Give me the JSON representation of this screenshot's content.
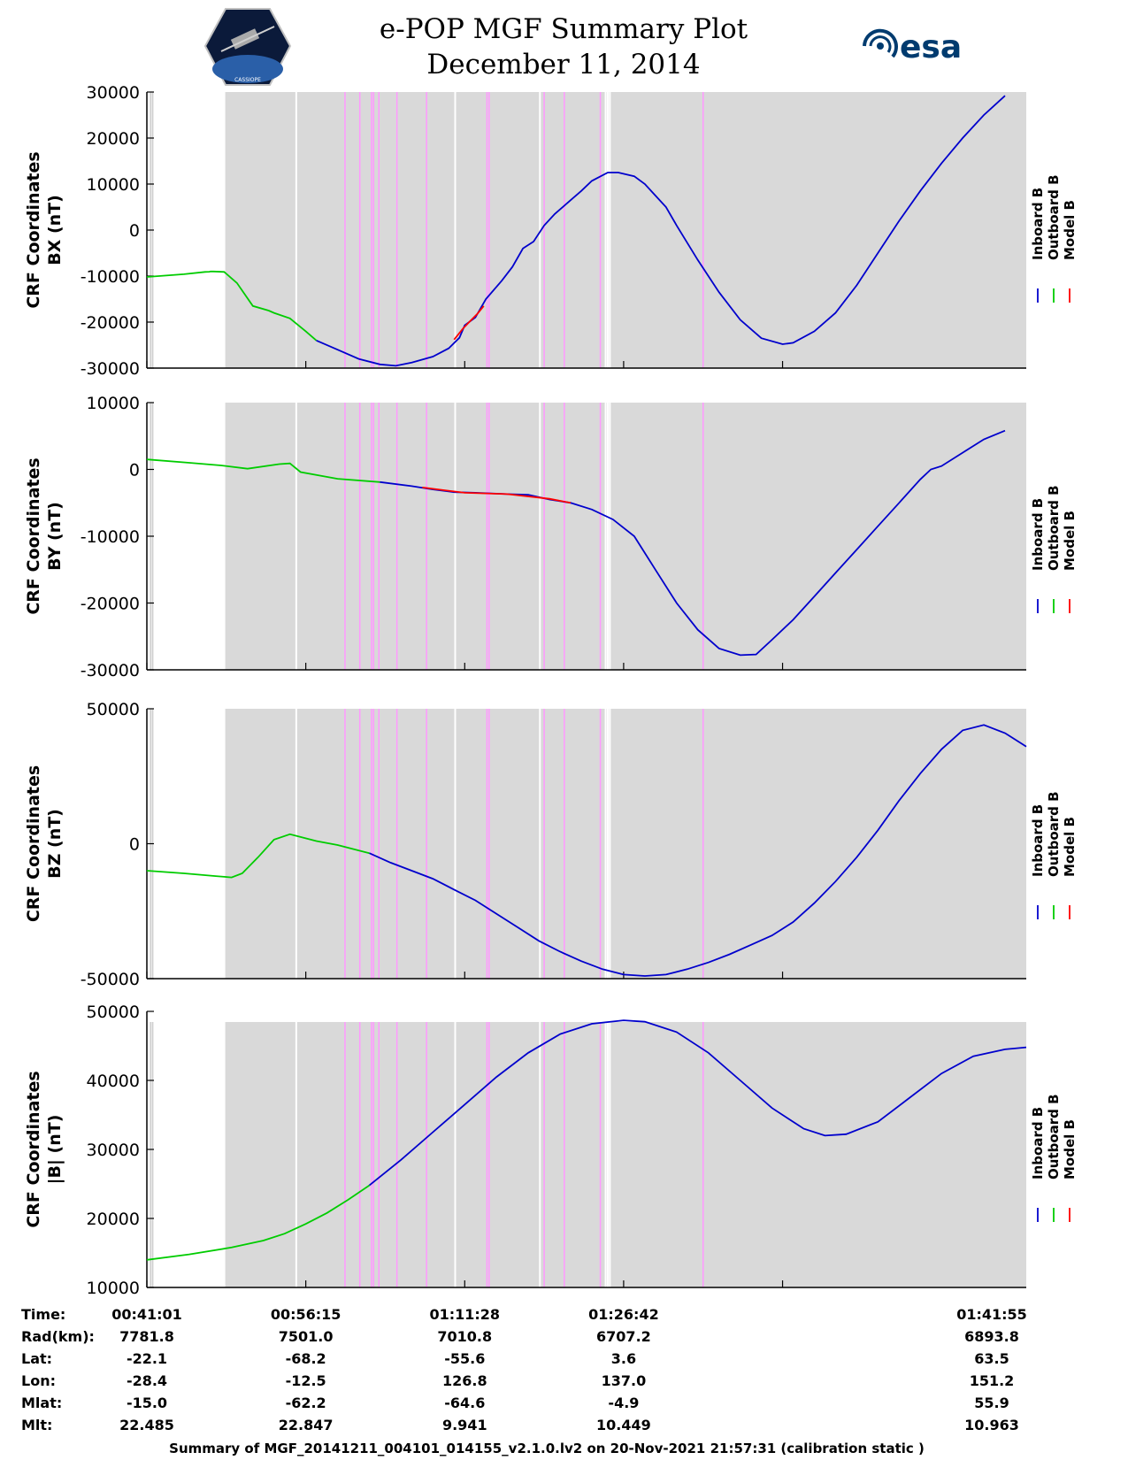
{
  "header": {
    "title": "e-POP MGF Summary Plot",
    "date": "December 11, 2014",
    "logo_left": "CASSIOPE",
    "logo_right": "esa"
  },
  "colors": {
    "inboard": "#0000cc",
    "outboard": "#00cc00",
    "model": "#ff0000",
    "background_shade": "#d9d9d9",
    "gap_line": "#ffffff",
    "marker_line": "#ff99ff"
  },
  "legend": {
    "inboard": "Inboard B",
    "outboard": "Outboard B",
    "model": "Model B"
  },
  "chart_data": [
    {
      "type": "line",
      "id": "bx",
      "ylabel_line1": "CRF Coordinates",
      "ylabel_line2": "BX (nT)",
      "ylim": [
        -30000,
        30000
      ],
      "yticks": [
        -30000,
        -20000,
        -10000,
        0,
        10000,
        20000,
        30000
      ],
      "series": [
        {
          "name": "Outboard B",
          "color_key": "outboard",
          "points": [
            [
              0,
              -10200
            ],
            [
              3.5,
              -9600
            ],
            [
              5.5,
              -9100
            ],
            [
              5.9,
              -9050
            ],
            [
              6.0,
              -9000
            ],
            [
              6.3,
              -9000
            ],
            [
              7.3,
              -9100
            ],
            [
              8.5,
              -11500
            ],
            [
              10,
              -16500
            ],
            [
              11.5,
              -17500
            ],
            [
              12,
              -18000
            ],
            [
              13.5,
              -19200
            ],
            [
              15,
              -22000
            ],
            [
              16,
              -24000
            ]
          ]
        },
        {
          "name": "Inboard B",
          "color_key": "inboard",
          "points": [
            [
              16,
              -24000
            ],
            [
              18,
              -26000
            ],
            [
              20,
              -28000
            ],
            [
              22,
              -29200
            ],
            [
              23.5,
              -29500
            ],
            [
              25,
              -28800
            ],
            [
              27,
              -27500
            ],
            [
              28.5,
              -25700
            ],
            [
              29.5,
              -23400
            ],
            [
              30,
              -20700
            ],
            [
              31,
              -19000
            ],
            [
              32,
              -15000
            ],
            [
              33.5,
              -11000
            ],
            [
              34.5,
              -8000
            ],
            [
              35.5,
              -4000
            ],
            [
              36.5,
              -2500
            ],
            [
              37.5,
              1000
            ],
            [
              38.5,
              3500
            ],
            [
              39,
              4500
            ],
            [
              40,
              6500
            ],
            [
              41,
              8500
            ],
            [
              42,
              10700
            ],
            [
              43.5,
              12500
            ],
            [
              44.5,
              12500
            ],
            [
              46,
              11700
            ],
            [
              47,
              10000
            ],
            [
              48,
              7500
            ],
            [
              49,
              5000
            ],
            [
              50,
              1000
            ],
            [
              52,
              -6500
            ],
            [
              54,
              -13500
            ],
            [
              56,
              -19500
            ],
            [
              58,
              -23500
            ],
            [
              60,
              -24800
            ],
            [
              61,
              -24500
            ],
            [
              63,
              -22000
            ],
            [
              65,
              -18000
            ],
            [
              67,
              -12000
            ],
            [
              69,
              -5000
            ],
            [
              71,
              2000
            ],
            [
              73,
              8500
            ],
            [
              75,
              14500
            ],
            [
              77,
              20000
            ],
            [
              79,
              25000
            ],
            [
              81,
              29200
            ]
          ]
        },
        {
          "name": "Model B",
          "color_key": "model",
          "points": [
            [
              29,
              -23800
            ],
            [
              29.8,
              -21500
            ],
            [
              30.5,
              -19800
            ],
            [
              31.2,
              -18200
            ],
            [
              31.8,
              -16500
            ]
          ]
        }
      ]
    },
    {
      "type": "line",
      "id": "by",
      "ylabel_line1": "CRF Coordinates",
      "ylabel_line2": "BY (nT)",
      "ylim": [
        -30000,
        10000
      ],
      "yticks": [
        -30000,
        -20000,
        -10000,
        0,
        10000
      ],
      "series": [
        {
          "name": "Outboard B",
          "color_key": "outboard",
          "points": [
            [
              0,
              1500
            ],
            [
              4,
              1000
            ],
            [
              7,
              600
            ],
            [
              9.5,
              100
            ],
            [
              12.5,
              800
            ],
            [
              13.5,
              900
            ],
            [
              14.5,
              -400
            ],
            [
              18,
              -1400
            ],
            [
              22,
              -1900
            ]
          ]
        },
        {
          "name": "Inboard B",
          "color_key": "inboard",
          "points": [
            [
              22,
              -1900
            ],
            [
              25,
              -2500
            ],
            [
              27,
              -3000
            ],
            [
              29,
              -3400
            ],
            [
              31,
              -3500
            ],
            [
              34,
              -3700
            ],
            [
              36,
              -3800
            ],
            [
              38,
              -4500
            ],
            [
              40,
              -5000
            ],
            [
              42,
              -6000
            ],
            [
              44,
              -7500
            ],
            [
              46,
              -10000
            ],
            [
              48,
              -15000
            ],
            [
              50,
              -20000
            ],
            [
              52,
              -24000
            ],
            [
              54,
              -26800
            ],
            [
              56,
              -27800
            ],
            [
              57.5,
              -27700
            ],
            [
              59,
              -25500
            ],
            [
              61,
              -22500
            ],
            [
              63,
              -19000
            ],
            [
              65,
              -15500
            ],
            [
              67,
              -12000
            ],
            [
              69,
              -8500
            ],
            [
              71,
              -5000
            ],
            [
              73,
              -1500
            ],
            [
              74,
              0
            ],
            [
              75,
              500
            ],
            [
              77,
              2500
            ],
            [
              79,
              4500
            ],
            [
              81,
              5800
            ]
          ]
        },
        {
          "name": "Model B",
          "color_key": "model",
          "points": [
            [
              26,
              -2700
            ],
            [
              30,
              -3500
            ],
            [
              34,
              -3700
            ],
            [
              38,
              -4400
            ],
            [
              40,
              -5000
            ]
          ]
        }
      ]
    },
    {
      "type": "line",
      "id": "bz",
      "ylabel_line1": "CRF Coordinates",
      "ylabel_line2": "BZ (nT)",
      "ylim": [
        -50000,
        50000
      ],
      "yticks": [
        -50000,
        0,
        50000
      ],
      "series": [
        {
          "name": "Outboard B",
          "color_key": "outboard",
          "points": [
            [
              0,
              -10000
            ],
            [
              3.5,
              -11000
            ],
            [
              6.5,
              -12000
            ],
            [
              8,
              -12500
            ],
            [
              9,
              -11000
            ],
            [
              10.5,
              -5000
            ],
            [
              12,
              1500
            ],
            [
              13.5,
              3500
            ],
            [
              14.5,
              2500
            ],
            [
              16,
              1000
            ],
            [
              18,
              -500
            ],
            [
              21,
              -3500
            ]
          ]
        },
        {
          "name": "Inboard B",
          "color_key": "inboard",
          "points": [
            [
              21,
              -3500
            ],
            [
              23,
              -7000
            ],
            [
              25,
              -10000
            ],
            [
              27,
              -13000
            ],
            [
              29,
              -17000
            ],
            [
              31,
              -21000
            ],
            [
              33,
              -26000
            ],
            [
              35,
              -31000
            ],
            [
              37,
              -36000
            ],
            [
              39,
              -40000
            ],
            [
              41,
              -43500
            ],
            [
              43,
              -46500
            ],
            [
              45,
              -48500
            ],
            [
              47,
              -49000
            ],
            [
              49,
              -48500
            ],
            [
              51,
              -46500
            ],
            [
              53,
              -44000
            ],
            [
              55,
              -41000
            ],
            [
              57,
              -37500
            ],
            [
              59,
              -34000
            ],
            [
              61,
              -29000
            ],
            [
              63,
              -22000
            ],
            [
              65,
              -14000
            ],
            [
              67,
              -5000
            ],
            [
              69,
              5000
            ],
            [
              71,
              16000
            ],
            [
              73,
              26000
            ],
            [
              75,
              35000
            ],
            [
              77,
              42000
            ],
            [
              79,
              44000
            ],
            [
              81,
              41000
            ],
            [
              83,
              36000
            ]
          ]
        }
      ]
    },
    {
      "type": "line",
      "id": "bmag",
      "ylabel_line1": "CRF Coordinates",
      "ylabel_line2": "|B| (nT)",
      "ylim": [
        10000,
        50000
      ],
      "yticks": [
        10000,
        20000,
        30000,
        40000,
        50000
      ],
      "series": [
        {
          "name": "Outboard B",
          "color_key": "outboard",
          "points": [
            [
              0,
              14000
            ],
            [
              4,
              14800
            ],
            [
              8,
              15800
            ],
            [
              11,
              16800
            ],
            [
              13,
              17800
            ],
            [
              15,
              19200
            ],
            [
              17,
              20800
            ],
            [
              19,
              22700
            ],
            [
              21,
              24800
            ]
          ]
        },
        {
          "name": "Inboard B",
          "color_key": "inboard",
          "points": [
            [
              21,
              24800
            ],
            [
              24,
              28500
            ],
            [
              27,
              32500
            ],
            [
              30,
              36500
            ],
            [
              33,
              40500
            ],
            [
              36,
              44000
            ],
            [
              39,
              46700
            ],
            [
              42,
              48200
            ],
            [
              45,
              48700
            ],
            [
              47,
              48500
            ],
            [
              50,
              47000
            ],
            [
              53,
              44000
            ],
            [
              56,
              40000
            ],
            [
              59,
              36000
            ],
            [
              62,
              33000
            ],
            [
              64,
              32000
            ],
            [
              66,
              32200
            ],
            [
              69,
              34000
            ],
            [
              72,
              37500
            ],
            [
              75,
              41000
            ],
            [
              78,
              43500
            ],
            [
              81,
              44500
            ],
            [
              83,
              44800
            ]
          ]
        }
      ]
    }
  ],
  "x_axis": {
    "xlim": [
      0,
      83
    ],
    "tick_positions_min": [
      0,
      15,
      30,
      45,
      60
    ],
    "labels": {
      "time": {
        "label": "Time:",
        "values": [
          "00:41:01",
          "00:56:15",
          "01:11:28",
          "01:26:42",
          "01:41:55"
        ]
      },
      "rad": {
        "label": "Rad(km):",
        "values": [
          "7781.8",
          "7501.0",
          "7010.8",
          "6707.2",
          "6893.8"
        ]
      },
      "lat": {
        "label": "Lat:",
        "values": [
          "-22.1",
          "-68.2",
          "-55.6",
          "3.6",
          "63.5"
        ]
      },
      "lon": {
        "label": "Lon:",
        "values": [
          "-28.4",
          "-12.5",
          "126.8",
          "137.0",
          "151.2"
        ]
      },
      "mlat": {
        "label": "Mlat:",
        "values": [
          "-15.0",
          "-62.2",
          "-64.6",
          "-4.9",
          "55.9"
        ]
      },
      "mlt": {
        "label": "Mlt:",
        "values": [
          "22.485",
          "22.847",
          "9.941",
          "10.449",
          "10.963"
        ]
      }
    }
  },
  "shading": {
    "start_min": 7.4,
    "end_min": 83,
    "gap_lines_min": [
      0.2,
      0.7,
      14.1,
      29.1,
      37.1,
      43.3,
      43.5,
      43.7
    ],
    "marker_lines_min": [
      18.7,
      20.1,
      21.2,
      21.4,
      21.9,
      23.6,
      26.4,
      32.1,
      32.3,
      37.5,
      39.4,
      42.8,
      52.5
    ],
    "left_gray_min": [
      0.3,
      0.6
    ]
  },
  "footer": "Summary of MGF_20141211_004101_014155_v2.1.0.lv2 on 20-Nov-2021 21:57:31 (calibration static )"
}
